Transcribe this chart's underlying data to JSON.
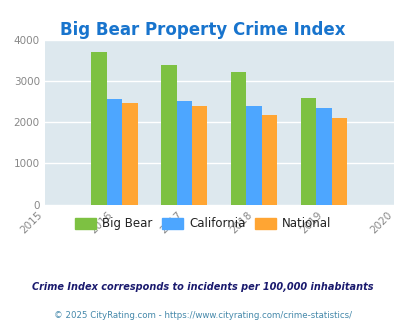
{
  "title": "Big Bear Property Crime Index",
  "title_color": "#1874CD",
  "title_fontsize": 12,
  "years": [
    2016,
    2017,
    2018,
    2019
  ],
  "big_bear": [
    3700,
    3380,
    3220,
    2580
  ],
  "california": [
    2560,
    2510,
    2380,
    2350
  ],
  "national": [
    2460,
    2380,
    2180,
    2110
  ],
  "bar_color_bigbear": "#7DC142",
  "bar_color_california": "#4DA6FF",
  "bar_color_national": "#FFA533",
  "bg_color": "#DDE8EE",
  "xlim": [
    2015,
    2020
  ],
  "ylim": [
    0,
    4000
  ],
  "yticks": [
    0,
    1000,
    2000,
    3000,
    4000
  ],
  "xlabel_years": [
    2015,
    2016,
    2017,
    2018,
    2019,
    2020
  ],
  "legend_labels": [
    "Big Bear",
    "California",
    "National"
  ],
  "footnote1": "Crime Index corresponds to incidents per 100,000 inhabitants",
  "footnote2": "© 2025 CityRating.com - https://www.cityrating.com/crime-statistics/",
  "footnote1_color": "#1a1a6e",
  "footnote2_color": "#4488aa",
  "bar_width": 0.22,
  "grid_color": "#ffffff"
}
